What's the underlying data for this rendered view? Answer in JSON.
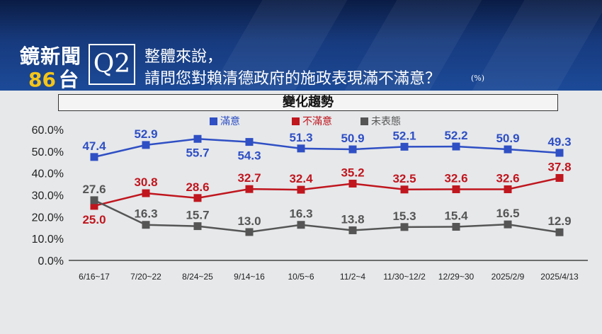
{
  "header": {
    "brand_line1": "鏡新聞",
    "brand_num": "86",
    "brand_suffix": "台",
    "question_label": "Q2",
    "question_line1": "整體來說，",
    "question_line2": "請問您對賴清德政府的施政表現滿不滿意？",
    "unit": "(%)"
  },
  "chart_title": "變化趨勢",
  "chart_data": {
    "type": "line",
    "categories": [
      "6/16~17",
      "7/20~22",
      "8/24~25",
      "9/14~16",
      "10/5~6",
      "11/2~4",
      "11/30~12/2",
      "12/29~30",
      "2025/2/9",
      "2025/4/13"
    ],
    "y_ticks": [
      "60.0%",
      "50.0%",
      "40.0%",
      "30.0%",
      "20.0%",
      "10.0%",
      "0.0%"
    ],
    "ylim": [
      0,
      60
    ],
    "legend_position": "top-center",
    "grid": false,
    "series": [
      {
        "name": "滿意",
        "color": "#2f4fc4",
        "values": [
          47.4,
          52.9,
          55.7,
          54.3,
          51.3,
          50.9,
          52.1,
          52.2,
          50.9,
          49.3
        ],
        "labels": [
          "47.4",
          "52.9",
          "55.7",
          "54.3",
          "51.3",
          "50.9",
          "52.1",
          "52.2",
          "50.9",
          "49.3"
        ],
        "label_pos": [
          "above",
          "above",
          "below",
          "below",
          "above",
          "above",
          "above",
          "above",
          "above",
          "above"
        ]
      },
      {
        "name": "不滿意",
        "color": "#c0161e",
        "values": [
          25.0,
          30.8,
          28.6,
          32.7,
          32.4,
          35.2,
          32.5,
          32.6,
          32.6,
          37.8
        ],
        "labels": [
          "25.0",
          "30.8",
          "28.6",
          "32.7",
          "32.4",
          "35.2",
          "32.5",
          "32.6",
          "32.6",
          "37.8"
        ],
        "label_pos": [
          "below",
          "above",
          "above",
          "above",
          "above",
          "above",
          "above",
          "above",
          "above",
          "above"
        ]
      },
      {
        "name": "未表態",
        "color": "#555555",
        "values": [
          27.6,
          16.3,
          15.7,
          13.0,
          16.3,
          13.8,
          15.3,
          15.4,
          16.5,
          12.9
        ],
        "labels": [
          "27.6",
          "16.3",
          "15.7",
          "13.0",
          "16.3",
          "13.8",
          "15.3",
          "15.4",
          "16.5",
          "12.9"
        ],
        "label_pos": [
          "above",
          "above",
          "above",
          "above",
          "above",
          "above",
          "above",
          "above",
          "above",
          "above"
        ]
      }
    ]
  }
}
